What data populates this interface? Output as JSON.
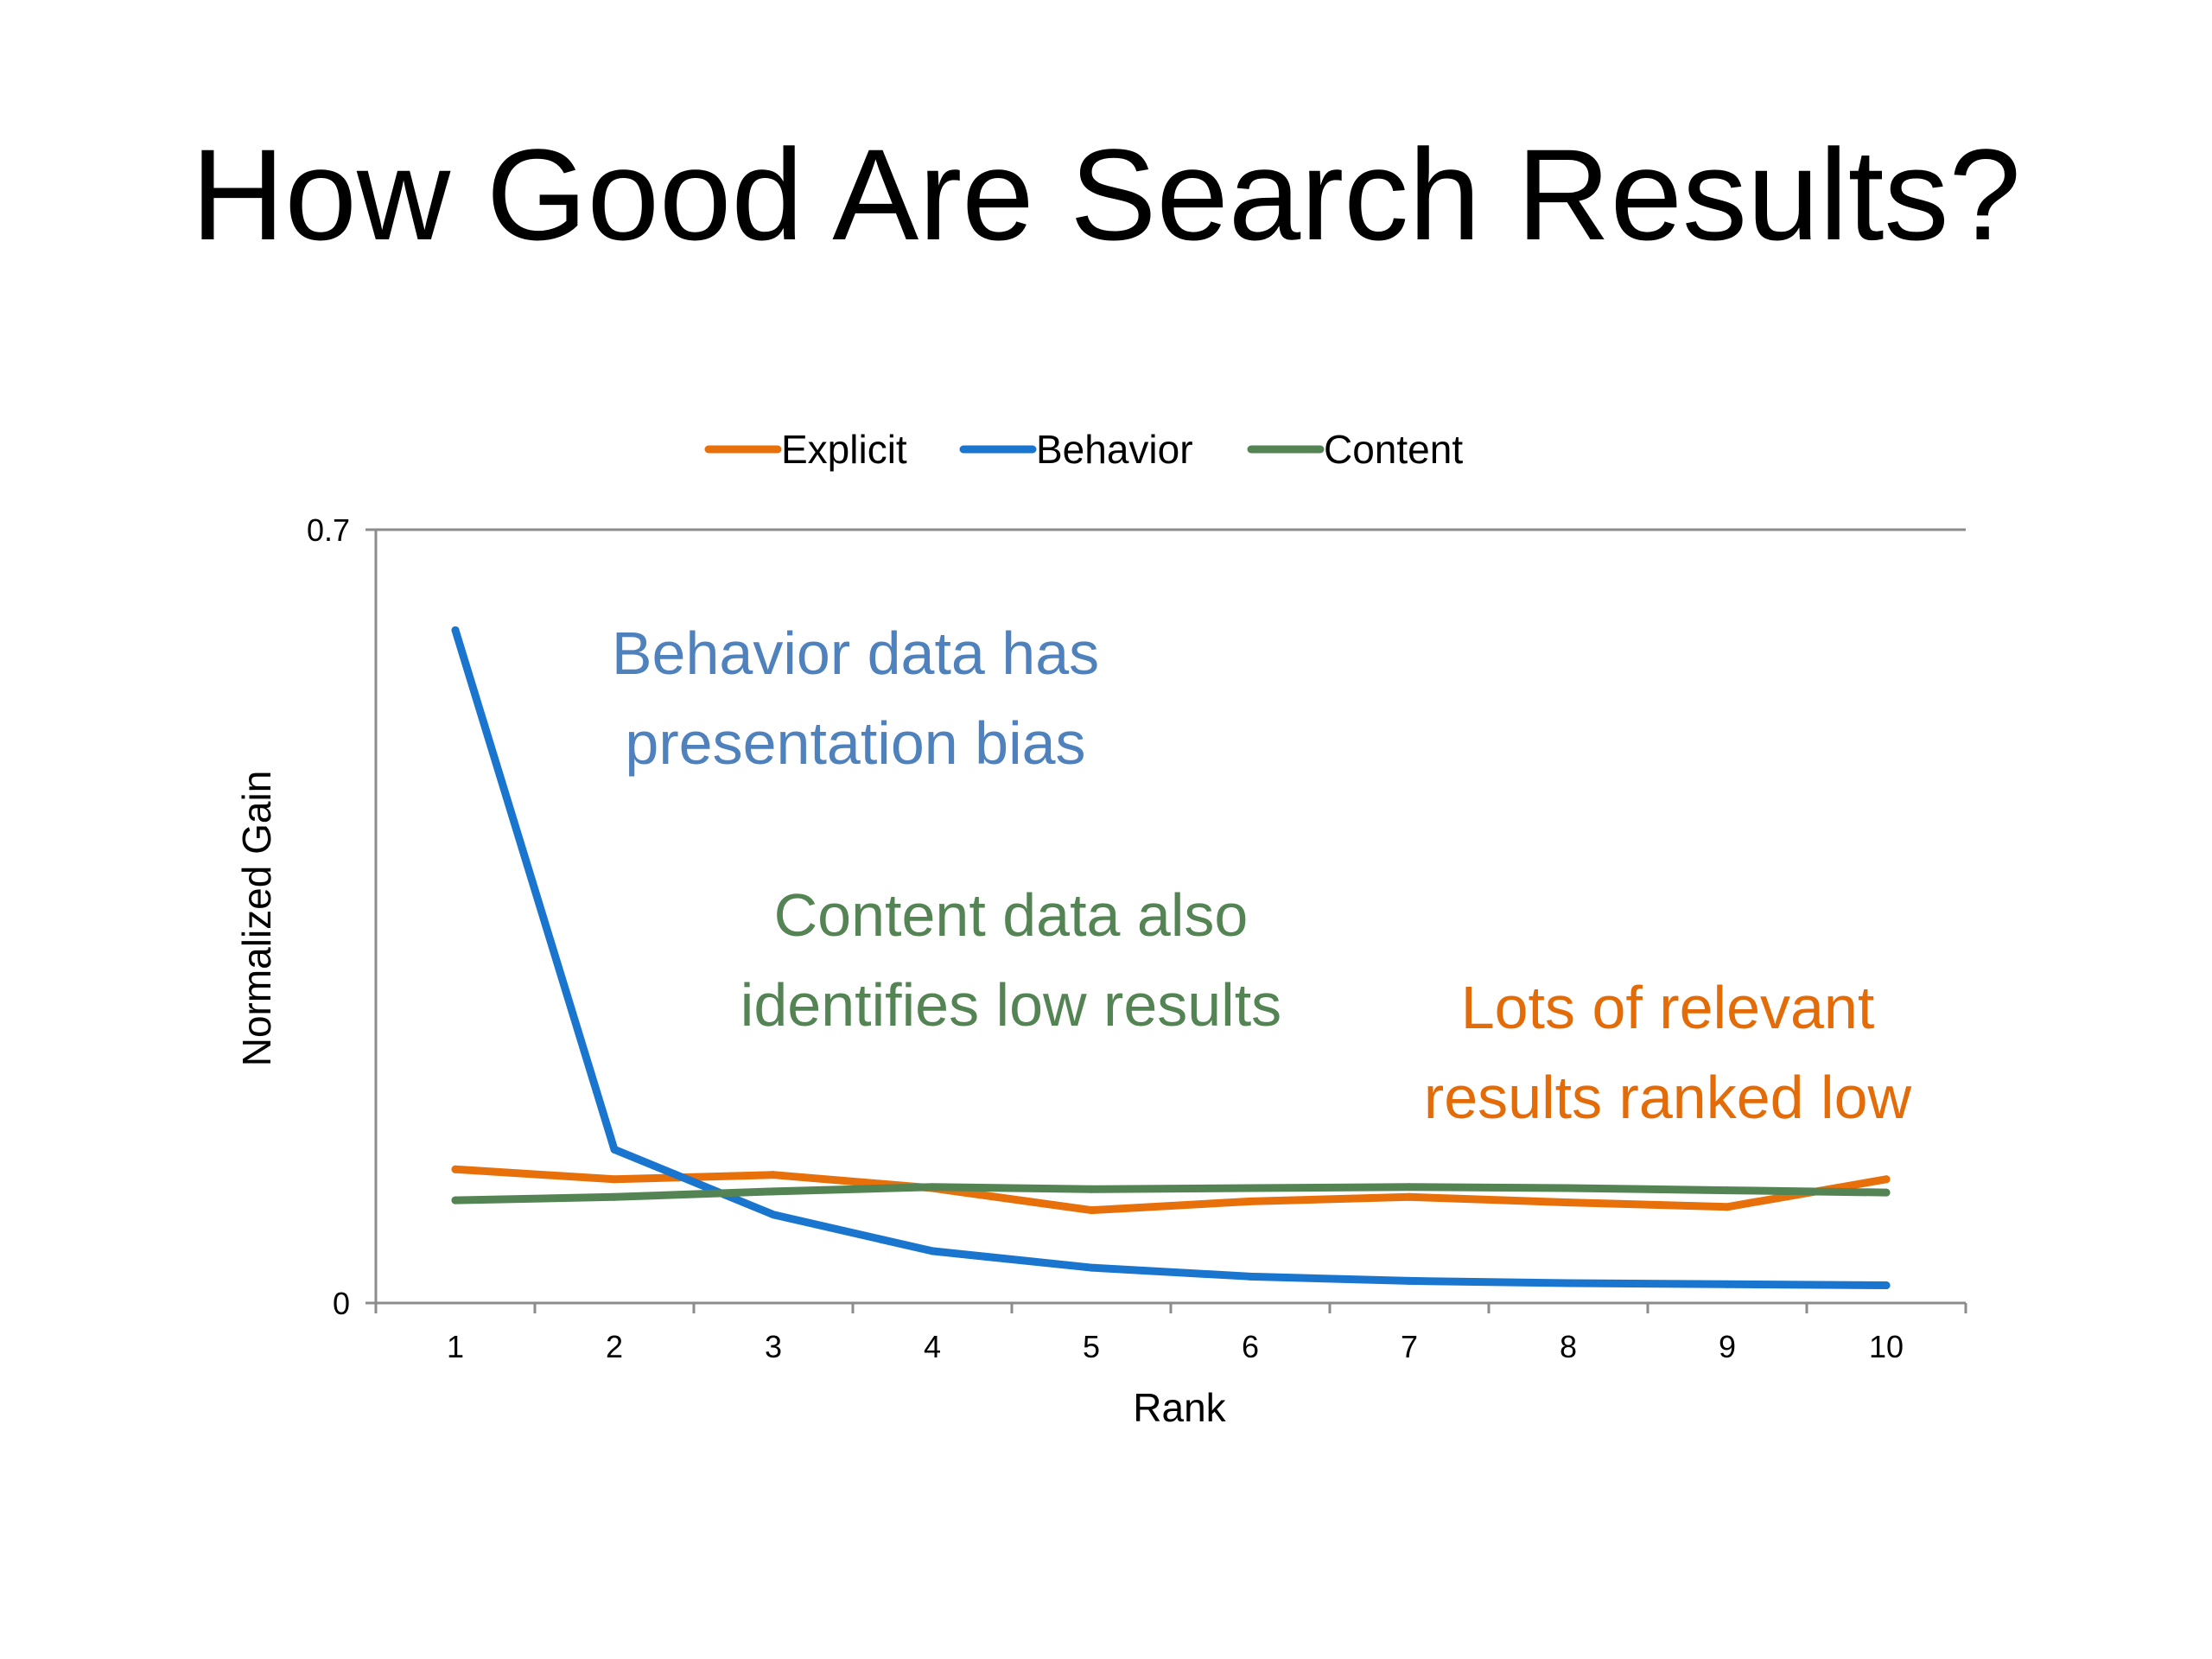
{
  "slide": {
    "title": "How Good Are Search Results?"
  },
  "annotations": {
    "behavior": {
      "lines": [
        "Behavior data has",
        "presentation bias"
      ],
      "color": "#4f81bd"
    },
    "content": {
      "lines": [
        "Content data also",
        "identifies low results"
      ],
      "color": "#548454"
    },
    "explicit": {
      "lines": [
        "Lots of relevant",
        "results ranked low"
      ],
      "color": "#e36c09"
    }
  },
  "chart_data": {
    "type": "line",
    "title": "",
    "xlabel": "Rank",
    "ylabel": "Normalized Gain",
    "x": [
      1,
      2,
      3,
      4,
      5,
      6,
      7,
      8,
      9,
      10
    ],
    "ylim": [
      0,
      0.7
    ],
    "yticks": [
      0,
      0.7
    ],
    "ytick_labels": [
      "0",
      "0.7"
    ],
    "grid": false,
    "legend_position": "top",
    "series": [
      {
        "name": "Explicit",
        "color": "#e8700b",
        "values": [
          0.121,
          0.112,
          0.116,
          0.104,
          0.084,
          0.092,
          0.096,
          0.091,
          0.087,
          0.112
        ]
      },
      {
        "name": "Behavior",
        "color": "#1a75cf",
        "values": [
          0.609,
          0.139,
          0.08,
          0.047,
          0.032,
          0.024,
          0.02,
          0.018,
          0.017,
          0.016
        ]
      },
      {
        "name": "Content",
        "color": "#548454",
        "values": [
          0.093,
          0.096,
          0.101,
          0.105,
          0.103,
          0.104,
          0.105,
          0.104,
          0.102,
          0.1
        ]
      }
    ]
  }
}
